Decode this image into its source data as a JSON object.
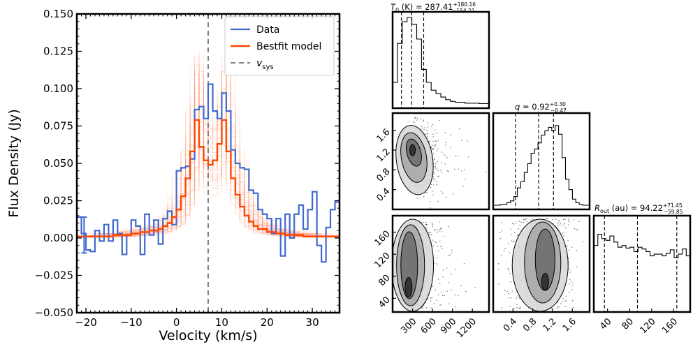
{
  "chart_data": [
    {
      "type": "line",
      "xlabel": "Velocity (km/s)",
      "ylabel": "Flux Density (Jy)",
      "xlim": [
        -22,
        36
      ],
      "ylim": [
        -0.05,
        0.15
      ],
      "xticks": [
        "−20",
        "−10",
        "0",
        "10",
        "20",
        "30"
      ],
      "xtick_values": [
        -20,
        -10,
        0,
        10,
        20,
        30
      ],
      "yticks": [
        "−0.050",
        "−0.025",
        "0.000",
        "0.025",
        "0.050",
        "0.075",
        "0.100",
        "0.125",
        "0.150"
      ],
      "ytick_values": [
        -0.05,
        -0.025,
        0.0,
        0.025,
        0.05,
        0.075,
        0.1,
        0.125,
        0.15
      ],
      "legend_position": "top-right",
      "vsys": 7.0,
      "errorbar": {
        "x": -20.4,
        "y": 0.002,
        "err": 0.012
      },
      "series": [
        {
          "name": "Data",
          "color": "#4169cf",
          "step": true,
          "x": [
            -22.0,
            -21.0,
            -20.0,
            -19.0,
            -18.0,
            -17.0,
            -16.0,
            -15.0,
            -14.0,
            -13.0,
            -12.0,
            -11.0,
            -10.0,
            -9.0,
            -8.0,
            -7.0,
            -6.0,
            -5.0,
            -4.0,
            -3.0,
            -2.0,
            -1.0,
            0.0,
            1.0,
            2.0,
            3.0,
            4.0,
            5.0,
            6.0,
            7.0,
            8.0,
            9.0,
            10.0,
            11.0,
            12.0,
            13.0,
            14.0,
            15.0,
            16.0,
            17.0,
            18.0,
            19.0,
            20.0,
            21.0,
            22.0,
            23.0,
            24.0,
            25.0,
            26.0,
            27.0,
            28.0,
            29.0,
            30.0,
            31.0,
            32.0,
            33.0,
            34.0,
            35.0
          ],
          "y": [
            0.014,
            0.003,
            -0.008,
            -0.009,
            0.005,
            -0.002,
            0.009,
            -0.002,
            0.012,
            0.003,
            -0.011,
            0.002,
            0.012,
            0.008,
            -0.011,
            0.016,
            0.002,
            0.012,
            -0.004,
            0.013,
            0.018,
            0.009,
            0.045,
            0.047,
            0.048,
            0.053,
            0.086,
            0.088,
            0.08,
            0.103,
            0.085,
            0.08,
            0.097,
            0.085,
            0.059,
            0.05,
            0.047,
            0.046,
            0.032,
            0.03,
            0.019,
            0.016,
            0.013,
            0.003,
            0.013,
            -0.012,
            0.016,
            0.0,
            0.016,
            0.022,
            0.006,
            0.019,
            0.031,
            -0.005,
            -0.016,
            0.007,
            0.019,
            0.024
          ]
        },
        {
          "name": "Bestfit model",
          "color": "#ff4500",
          "step": true,
          "x": [
            -22.0,
            -20.0,
            -18.0,
            -16.0,
            -14.0,
            -12.0,
            -10.0,
            -8.0,
            -6.0,
            -4.0,
            -3.0,
            -2.0,
            -1.0,
            0.0,
            1.0,
            2.0,
            3.0,
            4.0,
            5.0,
            6.0,
            7.0,
            8.0,
            9.0,
            10.0,
            11.0,
            12.0,
            13.0,
            14.0,
            15.0,
            16.0,
            17.0,
            18.0,
            20.0,
            22.0,
            24.0,
            26.0,
            28.0,
            30.0,
            32.0,
            34.0,
            36.0
          ],
          "y": [
            0.001,
            0.001,
            0.001,
            0.001,
            0.002,
            0.002,
            0.003,
            0.004,
            0.005,
            0.006,
            0.008,
            0.01,
            0.014,
            0.019,
            0.028,
            0.04,
            0.058,
            0.079,
            0.061,
            0.052,
            0.049,
            0.052,
            0.063,
            0.079,
            0.058,
            0.04,
            0.029,
            0.021,
            0.015,
            0.011,
            0.008,
            0.006,
            0.004,
            0.003,
            0.002,
            0.002,
            0.001,
            0.001,
            0.001,
            0.001,
            0.001
          ]
        },
        {
          "name": "v_sys",
          "color": "#808080"
        }
      ]
    },
    {
      "type": "corner",
      "parameters": [
        "T_0 (K)",
        "q",
        "R_out (au)"
      ],
      "titles": [
        {
          "label": "T",
          "sub": "0",
          "rest": " (K) = 287.41",
          "plus": "+180.16",
          "minus": "−154.21"
        },
        {
          "label": "q",
          "sub": "",
          "rest": " = 0.92",
          "plus": "+0.30",
          "minus": "−0.47"
        },
        {
          "label": "R",
          "sub": "out",
          "rest": " (au) = 94.22",
          "plus": "+71.45",
          "minus": "−59.85"
        }
      ],
      "T0": {
        "median": 287.41,
        "plus": 180.16,
        "minus": 154.21,
        "range": [
          0,
          1450
        ],
        "ticks": [
          "300",
          "600",
          "900",
          "1200"
        ],
        "tick_values": [
          300,
          600,
          900,
          1200
        ]
      },
      "q": {
        "median": 0.92,
        "plus": 0.3,
        "minus": 0.47,
        "range": [
          0.0,
          1.95
        ],
        "ticks": [
          "0.4",
          "0.8",
          "1.2",
          "1.6"
        ],
        "tick_values": [
          0.4,
          0.8,
          1.2,
          1.6
        ]
      },
      "Rout": {
        "median": 94.22,
        "plus": 71.45,
        "minus": 59.85,
        "range": [
          15,
          190
        ],
        "ticks": [
          "40",
          "80",
          "120",
          "160"
        ],
        "tick_values": [
          40,
          80,
          120,
          160
        ]
      },
      "hist_T0": [
        0.25,
        0.7,
        0.95,
        1.0,
        0.92,
        0.75,
        0.4,
        0.25,
        0.16,
        0.12,
        0.08,
        0.05,
        0.03,
        0.02,
        0.02,
        0.01,
        0.01,
        0.01,
        0.005,
        0.005
      ],
      "hist_q": [
        0.0,
        0.0,
        0.01,
        0.01,
        0.03,
        0.05,
        0.1,
        0.2,
        0.27,
        0.38,
        0.48,
        0.6,
        0.65,
        0.72,
        0.81,
        0.86,
        0.9,
        0.86,
        0.92,
        0.82,
        0.55,
        0.3,
        0.18,
        0.07,
        0.03,
        0.01,
        0.0,
        0.0
      ],
      "hist_Rout": [
        0.72,
        0.85,
        0.8,
        0.78,
        0.83,
        0.76,
        0.7,
        0.72,
        0.69,
        0.7,
        0.65,
        0.7,
        0.68,
        0.65,
        0.6,
        0.62,
        0.62,
        0.6,
        0.63,
        0.67,
        0.58,
        0.62,
        0.68,
        0.6
      ]
    }
  ]
}
